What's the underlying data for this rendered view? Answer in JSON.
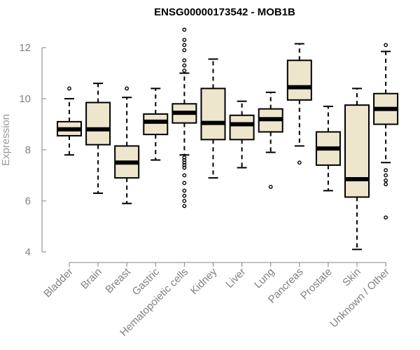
{
  "chart_data": {
    "type": "boxplot",
    "title": "ENSG00000173542 - MOB1B",
    "xlabel": "",
    "ylabel": "Expression",
    "ylim": [
      4,
      13
    ],
    "yticks": [
      4,
      6,
      8,
      10,
      12
    ],
    "box_fill": "#ede6cc",
    "categories": [
      "Bladder",
      "Brain",
      "Breast",
      "Gastric",
      "Hematopoietic cells",
      "Kidney",
      "Liver",
      "Lung",
      "Pancreas",
      "Prostate",
      "Skin",
      "Unknown / Other"
    ],
    "boxes": [
      {
        "category": "Bladder",
        "whisker_low": 7.8,
        "q1": 8.55,
        "median": 8.8,
        "q3": 9.1,
        "whisker_high": 10.0,
        "outliers": [
          10.4
        ]
      },
      {
        "category": "Brain",
        "whisker_low": 6.3,
        "q1": 8.2,
        "median": 8.8,
        "q3": 9.85,
        "whisker_high": 10.6,
        "outliers": []
      },
      {
        "category": "Breast",
        "whisker_low": 5.9,
        "q1": 6.9,
        "median": 7.5,
        "q3": 8.15,
        "whisker_high": 10.05,
        "outliers": [
          10.4
        ]
      },
      {
        "category": "Gastric",
        "whisker_low": 7.6,
        "q1": 8.6,
        "median": 9.1,
        "q3": 9.4,
        "whisker_high": 10.4,
        "outliers": []
      },
      {
        "category": "Hematopoietic cells",
        "whisker_low": 7.8,
        "q1": 9.05,
        "median": 9.45,
        "q3": 9.8,
        "whisker_high": 11.0,
        "outliers": [
          5.8,
          6.0,
          6.2,
          6.4,
          6.7,
          7.0,
          7.3,
          7.4,
          7.5,
          7.6,
          7.7,
          11.1,
          11.3,
          11.5,
          11.9,
          12.1,
          12.3,
          12.7
        ]
      },
      {
        "category": "Kidney",
        "whisker_low": 6.9,
        "q1": 8.4,
        "median": 9.05,
        "q3": 10.4,
        "whisker_high": 11.55,
        "outliers": []
      },
      {
        "category": "Liver",
        "whisker_low": 7.3,
        "q1": 8.4,
        "median": 9.0,
        "q3": 9.35,
        "whisker_high": 9.9,
        "outliers": []
      },
      {
        "category": "Lung",
        "whisker_low": 7.9,
        "q1": 8.7,
        "median": 9.2,
        "q3": 9.6,
        "whisker_high": 10.25,
        "outliers": [
          6.55
        ]
      },
      {
        "category": "Pancreas",
        "whisker_low": 8.15,
        "q1": 9.95,
        "median": 10.45,
        "q3": 11.5,
        "whisker_high": 12.15,
        "outliers": [
          7.5
        ]
      },
      {
        "category": "Prostate",
        "whisker_low": 6.4,
        "q1": 7.4,
        "median": 8.05,
        "q3": 8.7,
        "whisker_high": 9.7,
        "outliers": []
      },
      {
        "category": "Skin",
        "whisker_low": 4.1,
        "q1": 6.15,
        "median": 6.85,
        "q3": 9.75,
        "whisker_high": 10.4,
        "outliers": []
      },
      {
        "category": "Unknown / Other",
        "whisker_low": 7.5,
        "q1": 9.0,
        "median": 9.6,
        "q3": 10.2,
        "whisker_high": 11.85,
        "outliers": [
          5.35,
          6.65,
          6.8,
          7.0,
          7.2,
          12.1
        ]
      }
    ]
  }
}
